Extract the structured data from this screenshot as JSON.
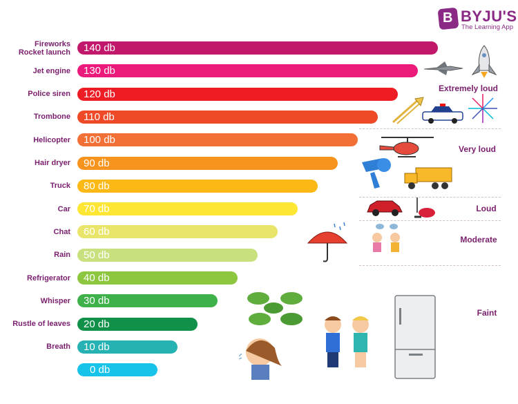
{
  "chart_data": {
    "type": "bar",
    "orientation": "horizontal",
    "categories": [
      "Fireworks\nRocket launch",
      "Jet engine",
      "Police siren",
      "Trombone",
      "Helicopter",
      "Hair dryer",
      "Truck",
      "Car",
      "Chat",
      "Rain",
      "Refrigerator",
      "Whisper",
      "Rustle of leaves",
      "Breath",
      ""
    ],
    "values": [
      140,
      130,
      120,
      110,
      100,
      90,
      80,
      70,
      60,
      50,
      40,
      30,
      20,
      10,
      0
    ],
    "value_labels": [
      "140 db",
      "130 db",
      "120 db",
      "110 db",
      "100 db",
      "90 db",
      "80 db",
      "70 db",
      "60 db",
      "50 db",
      "40 db",
      "30 db",
      "20 db",
      "10 db",
      "0 db"
    ],
    "colors": [
      "#c2186b",
      "#ec1a7b",
      "#ee1c25",
      "#ef4a28",
      "#f26f35",
      "#f7941d",
      "#fcb814",
      "#fee634",
      "#e9e56a",
      "#c9e07f",
      "#8dc63f",
      "#3fb14b",
      "#109049",
      "#26b1b3",
      "#17c3e8"
    ],
    "unit": "db"
  },
  "categories_loudness": [
    "Extremely loud",
    "Very loud",
    "Loud",
    "Moderate",
    "Faint"
  ],
  "brand": {
    "name": "BYJU'S",
    "tagline": "The Learning App",
    "logo_letter": "B",
    "color": "#8a2a85"
  },
  "illustrations": [
    "rocket-icon",
    "fighter-jet-icon",
    "police-car-icon",
    "trombone-icon",
    "fireworks-icon",
    "helicopter-icon",
    "hair-dryer-icon",
    "dump-truck-icon",
    "car-icon",
    "vacuum-cleaner-icon",
    "umbrella-icon",
    "talking-kids-icon",
    "leaves-icon",
    "whispering-kids-icon",
    "breathing-girl-icon",
    "refrigerator-icon"
  ]
}
